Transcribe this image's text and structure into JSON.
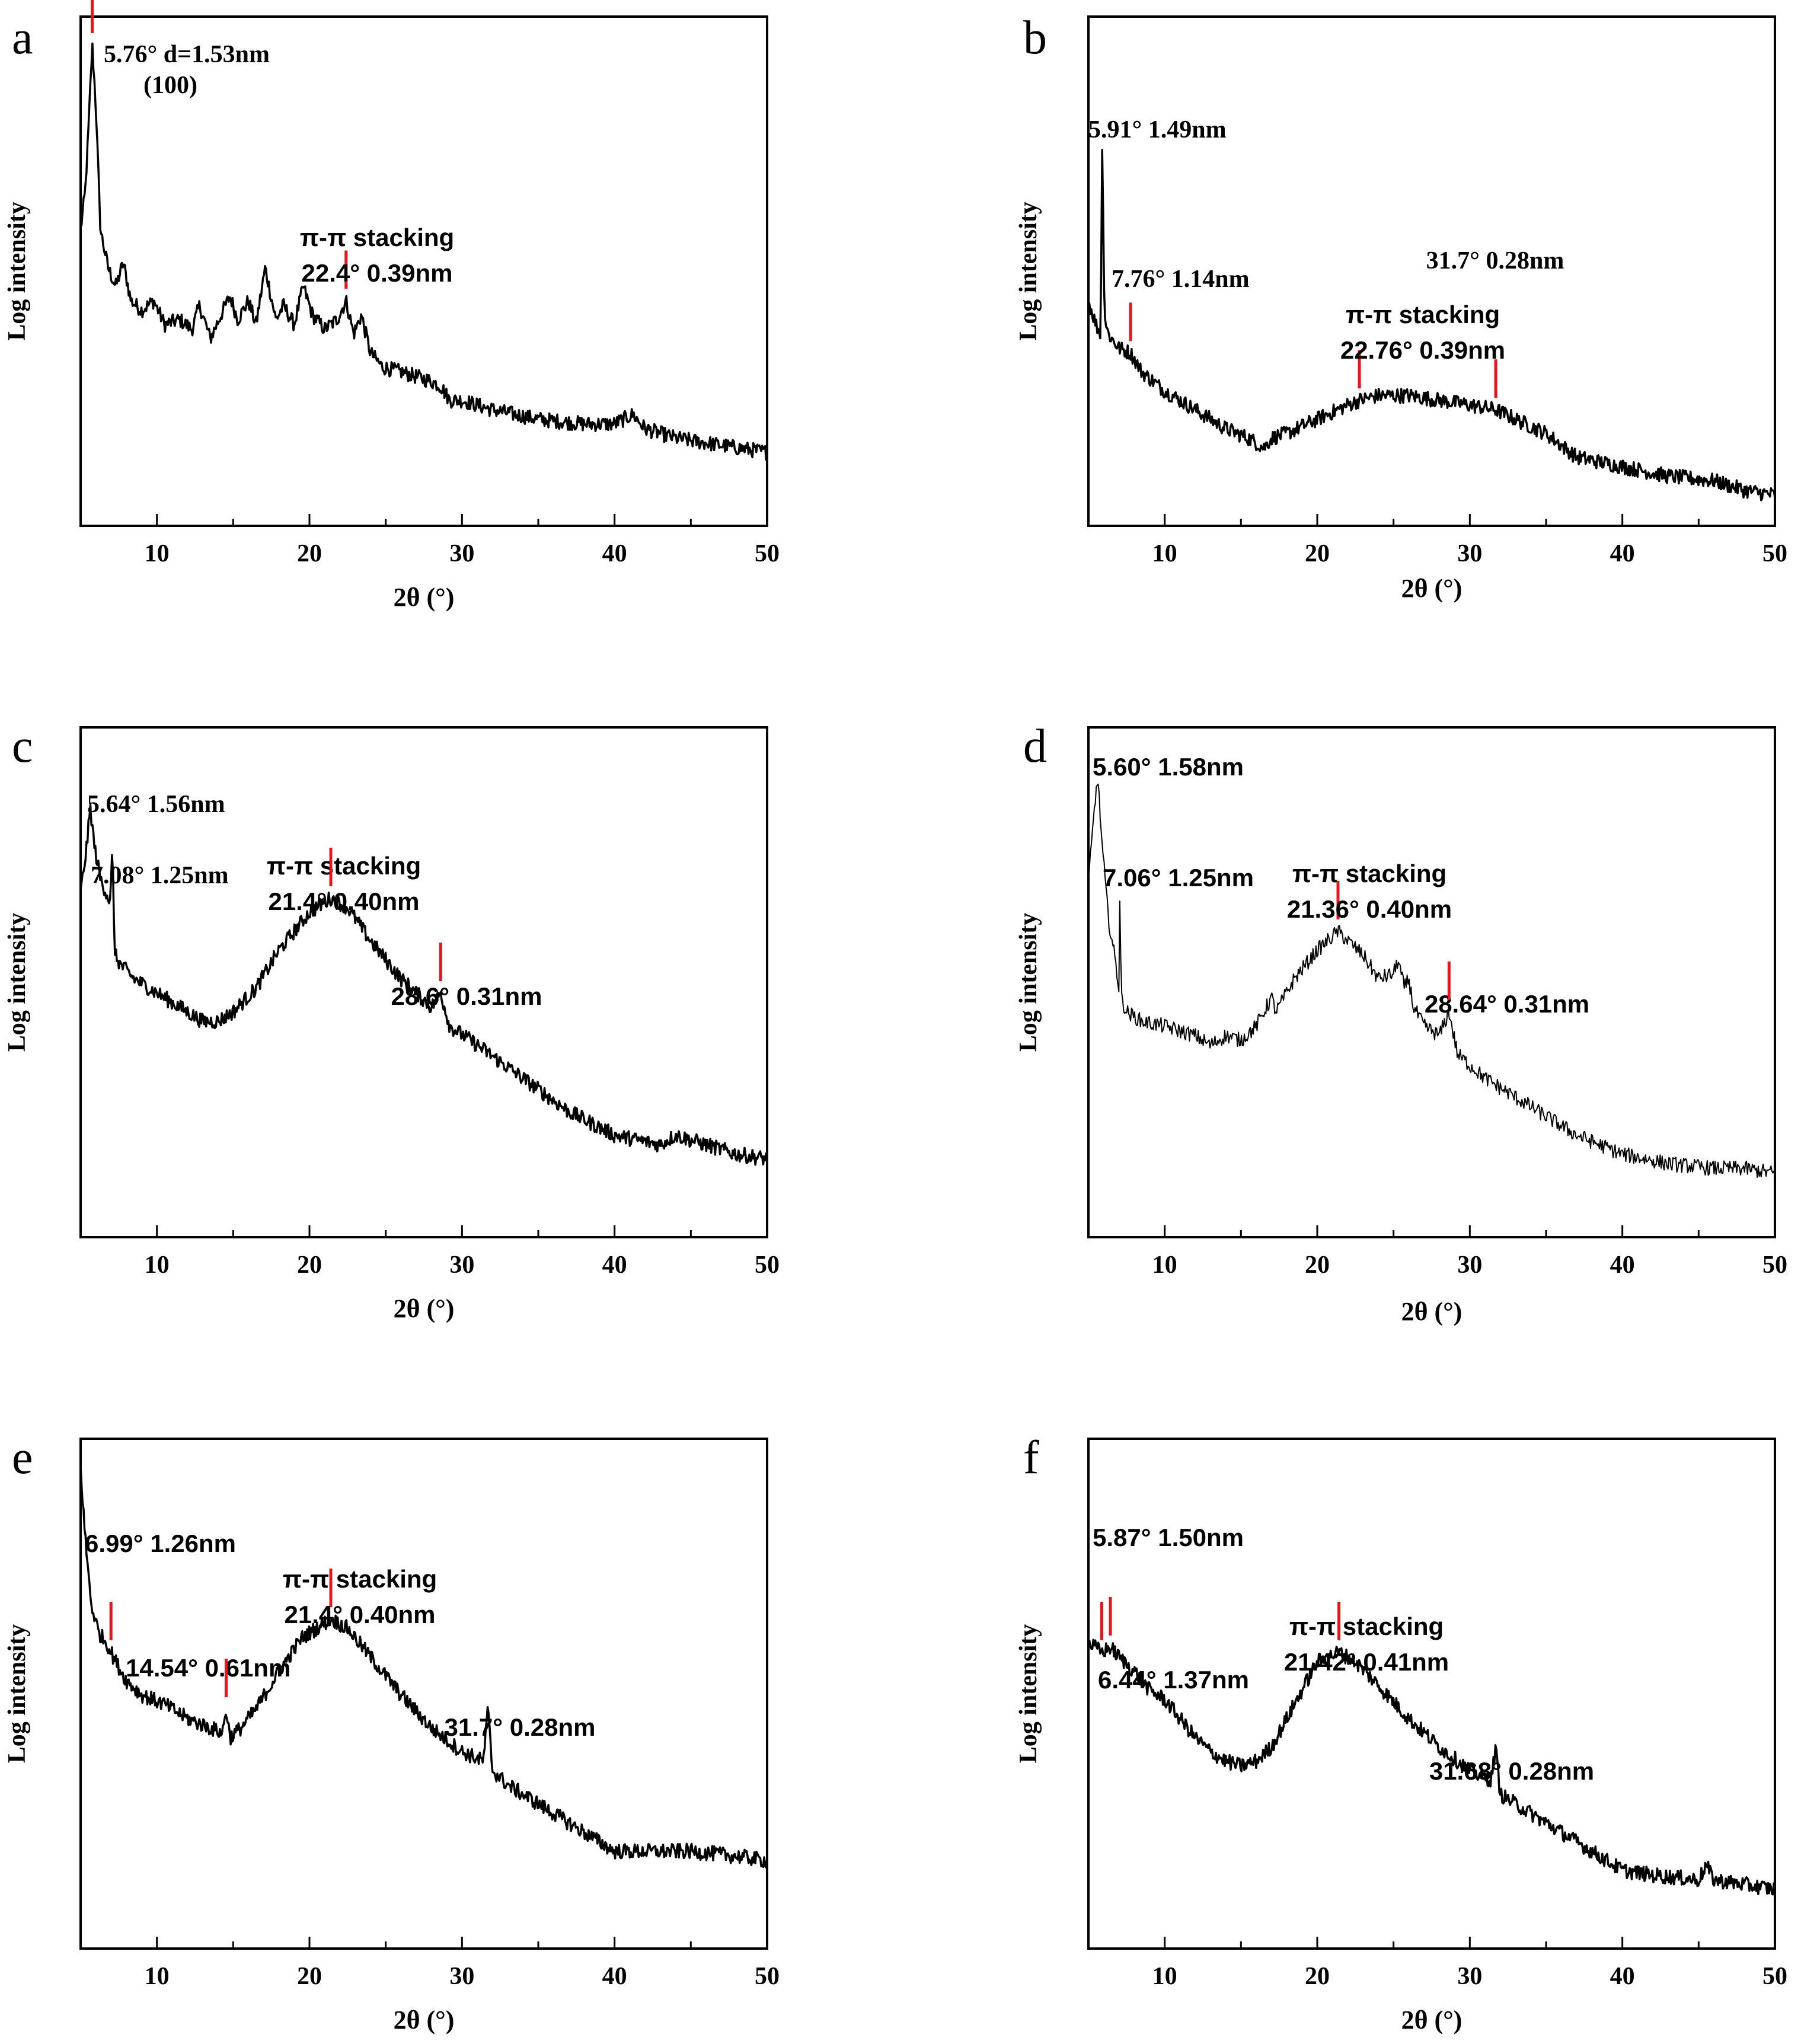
{
  "figure": {
    "background": "#ffffff",
    "line_color": "#000000",
    "marker_color": "#e8141c"
  },
  "chart_data": [
    {
      "panel": "a",
      "type": "line",
      "xlabel": "2θ (°)",
      "ylabel": "Log intensity",
      "xlim": [
        5,
        50
      ],
      "ylim": [
        0,
        100
      ],
      "xticks": [
        "10",
        "20",
        "30",
        "40",
        "50"
      ],
      "series": [
        {
          "name": "a",
          "x": [
            5,
            5.3,
            5.5,
            5.76,
            6.0,
            6.3,
            6.8,
            7.3,
            7.8,
            8.3,
            9.0,
            9.8,
            10.5,
            11.5,
            12.3,
            12.8,
            13.5,
            14.2,
            14.8,
            15.3,
            16.0,
            16.5,
            17.1,
            17.8,
            18.3,
            19.0,
            19.6,
            20.2,
            21.0,
            21.8,
            22.4,
            22.9,
            23.4,
            24.0,
            24.8,
            26.0,
            27.0,
            28.0,
            28.6,
            29.2,
            30.0,
            32.0,
            35.0,
            38.0,
            40.0,
            41.2,
            42.0,
            44.0,
            46.0,
            48.0,
            50.0
          ],
          "y": [
            60,
            68,
            80,
            99,
            86,
            60,
            52,
            48,
            53,
            45,
            43,
            45,
            40,
            41,
            39,
            44,
            37,
            42,
            46,
            41,
            45,
            40,
            52,
            41,
            44,
            40,
            48,
            42,
            39,
            41,
            45,
            38,
            42,
            34,
            31,
            30,
            29,
            28,
            27,
            24,
            24,
            22,
            20,
            19,
            19,
            21,
            18,
            16,
            15,
            14,
            13
          ]
        }
      ],
      "annotations": [
        {
          "text": "5.76° d=1.53nm",
          "x": 5.76,
          "y": 99
        },
        {
          "text": "(100)"
        },
        {
          "text": "π-π stacking",
          "x": 22.4,
          "y": 45
        },
        {
          "text": "22.4°  0.39nm"
        }
      ]
    },
    {
      "panel": "b",
      "type": "line",
      "xlabel": "2θ (°)",
      "ylabel": "Log intensity",
      "xlim": [
        5,
        50
      ],
      "ylim": [
        0,
        100
      ],
      "xticks": [
        "10",
        "20",
        "30",
        "40",
        "50"
      ],
      "series": [
        {
          "name": "b",
          "x": [
            5,
            5.5,
            5.8,
            5.91,
            6.05,
            6.3,
            7.0,
            7.76,
            8.5,
            10.0,
            12.0,
            14.0,
            15.5,
            16.5,
            17.0,
            18.0,
            20.0,
            22.0,
            22.76,
            24.0,
            26.0,
            28.0,
            30.0,
            31.7,
            33.0,
            35.0,
            37.0,
            40.0,
            43.0,
            46.0,
            48.0,
            50.0
          ],
          "y": [
            45,
            40,
            38,
            80,
            42,
            38,
            35,
            34,
            30,
            26,
            22,
            18,
            16,
            14,
            16,
            17,
            20,
            23,
            24,
            25,
            25,
            24,
            23,
            22,
            20,
            17,
            12,
            10,
            8,
            7,
            5,
            4
          ]
        }
      ],
      "annotations": [
        {
          "text": "5.91° 1.49nm",
          "x": 5.91,
          "y": 80
        },
        {
          "text": "7.76° 1.14nm",
          "x": 7.76,
          "y": 34
        },
        {
          "text": "π-π stacking",
          "x": 22.76,
          "y": 24
        },
        {
          "text": "22.76° 0.39nm"
        },
        {
          "text": "31.7° 0.28nm",
          "x": 31.7,
          "y": 22
        }
      ]
    },
    {
      "panel": "c",
      "type": "line",
      "xlabel": "2θ (°)",
      "ylabel": "Log intensity",
      "xlim": [
        5,
        50
      ],
      "ylim": [
        0,
        100
      ],
      "xticks": [
        "10",
        "20",
        "30",
        "40",
        "50"
      ],
      "series": [
        {
          "name": "c",
          "x": [
            5,
            5.4,
            5.64,
            5.9,
            6.3,
            6.7,
            6.95,
            7.08,
            7.25,
            7.6,
            8.5,
            10.0,
            11.5,
            13.0,
            14.0,
            15.0,
            16.5,
            18.0,
            20.0,
            21.4,
            22.5,
            24.0,
            26.0,
            28.0,
            28.6,
            29.2,
            31.0,
            34.0,
            37.0,
            40.0,
            43.0,
            44.0,
            46.0,
            48.0,
            50.0
          ],
          "y": [
            70,
            80,
            88,
            80,
            73,
            70,
            68,
            79,
            57,
            55,
            52,
            49,
            46,
            43,
            43,
            45,
            50,
            58,
            66,
            69,
            67,
            60,
            52,
            46,
            49,
            42,
            38,
            31,
            24,
            19,
            17,
            19,
            17,
            15,
            14
          ]
        }
      ],
      "annotations": [
        {
          "text": "5.64° 1.56nm",
          "x": 5.64,
          "y": 88
        },
        {
          "text": "7.08° 1.25nm",
          "x": 7.08,
          "y": 79
        },
        {
          "text": "π-π stacking",
          "x": 21.4,
          "y": 69
        },
        {
          "text": "21.4° 0.40nm"
        },
        {
          "text": "28.6° 0.31nm",
          "x": 28.6,
          "y": 49
        }
      ]
    },
    {
      "panel": "d",
      "type": "line",
      "xlabel": "2θ (°)",
      "ylabel": "Log intensity",
      "xlim": [
        5,
        50
      ],
      "ylim": [
        0,
        100
      ],
      "xticks": [
        "10",
        "20",
        "30",
        "40",
        "50"
      ],
      "series": [
        {
          "name": "d",
          "x": [
            5,
            5.3,
            5.6,
            5.9,
            6.3,
            6.8,
            7.0,
            7.06,
            7.15,
            7.5,
            8.5,
            10.0,
            12.0,
            13.0,
            14.0,
            15.0,
            16.0,
            17.0,
            17.3,
            18.5,
            20.0,
            21.36,
            22.0,
            23.0,
            24.0,
            25.0,
            25.3,
            25.7,
            26.0,
            26.3,
            27.0,
            28.0,
            28.64,
            29.2,
            31.0,
            34.0,
            37.0,
            40.0,
            43.0,
            46.0,
            48.0,
            50.0
          ],
          "y": [
            72,
            84,
            95,
            80,
            65,
            55,
            50,
            70,
            48,
            45,
            43,
            42,
            40,
            38,
            40,
            39,
            42,
            48,
            45,
            52,
            58,
            62,
            60,
            57,
            52,
            53,
            56,
            50,
            52,
            46,
            42,
            40,
            45,
            36,
            31,
            25,
            19,
            15,
            13,
            12,
            12,
            11
          ]
        }
      ],
      "annotations": [
        {
          "text": "5.60° 1.58nm",
          "x": 5.6,
          "y": 95
        },
        {
          "text": "7.06° 1.25nm",
          "x": 7.06,
          "y": 70
        },
        {
          "text": "π-π stacking",
          "x": 21.36,
          "y": 62
        },
        {
          "text": "21.36° 0.40nm"
        },
        {
          "text": "28.64° 0.31nm",
          "x": 28.64,
          "y": 45
        }
      ]
    },
    {
      "panel": "e",
      "type": "line",
      "xlabel": "2θ (°)",
      "ylabel": "Log intensity",
      "xlim": [
        5,
        50
      ],
      "ylim": [
        0,
        100
      ],
      "xticks": [
        "10",
        "20",
        "30",
        "40",
        "50"
      ],
      "series": [
        {
          "name": "e",
          "x": [
            5,
            5.3,
            5.7,
            6.2,
            6.7,
            6.99,
            7.3,
            8.0,
            9.0,
            10.5,
            12.0,
            13.5,
            14.3,
            14.54,
            14.8,
            15.5,
            16.5,
            18.0,
            19.5,
            21.4,
            22.5,
            24.0,
            26.0,
            28.0,
            30.0,
            31.4,
            31.7,
            32.0,
            33.0,
            35.0,
            38.0,
            40.0,
            42.0,
            45.0,
            48.0,
            50.0
          ],
          "y": [
            99,
            84,
            70,
            64,
            62,
            60,
            58,
            54,
            51,
            49,
            46,
            44,
            43,
            48,
            42,
            44,
            48,
            56,
            63,
            67,
            65,
            59,
            51,
            44,
            39,
            37,
            48,
            35,
            32,
            28,
            22,
            18,
            18,
            18,
            17,
            16
          ]
        }
      ],
      "annotations": [
        {
          "text": "6.99° 1.26nm",
          "x": 6.99,
          "y": 60
        },
        {
          "text": "14.54° 0.61nm",
          "x": 14.54,
          "y": 48
        },
        {
          "text": "π-π stacking",
          "x": 21.4,
          "y": 67
        },
        {
          "text": "21.4° 0.40nm"
        },
        {
          "text": "31.7° 0.28nm",
          "x": 31.7,
          "y": 48
        }
      ]
    },
    {
      "panel": "f",
      "type": "line",
      "xlabel": "2θ (°)",
      "ylabel": "Log intensity",
      "xlim": [
        5,
        50
      ],
      "ylim": [
        0,
        100
      ],
      "xticks": [
        "10",
        "20",
        "30",
        "40",
        "50"
      ],
      "series": [
        {
          "name": "f",
          "x": [
            5,
            5.87,
            6.44,
            7.0,
            8.0,
            9.0,
            10.0,
            11.0,
            12.0,
            13.0,
            14.0,
            15.0,
            16.0,
            17.0,
            18.0,
            19.0,
            20.0,
            21.42,
            22.5,
            24.0,
            26.0,
            28.0,
            30.0,
            31.4,
            31.68,
            32.0,
            33.0,
            35.0,
            38.0,
            40.0,
            42.0,
            45.0,
            45.5,
            46.0,
            48.0,
            50.0
          ],
          "y": [
            62,
            60,
            61,
            59,
            56,
            52,
            50,
            46,
            42,
            39,
            37,
            36,
            37,
            40,
            46,
            52,
            58,
            60,
            58,
            53,
            46,
            40,
            35,
            33,
            40,
            30,
            28,
            24,
            18,
            14,
            13,
            12,
            15,
            12,
            11,
            10
          ]
        }
      ],
      "annotations": [
        {
          "text": "5.87° 1.50nm",
          "x": 5.87,
          "y": 60
        },
        {
          "text": "6.44° 1.37nm",
          "x": 6.44,
          "y": 61
        },
        {
          "text": "π-π stacking",
          "x": 21.42,
          "y": 60
        },
        {
          "text": "21.42° 0.41nm"
        },
        {
          "text": "31.68° 0.28nm",
          "x": 31.68,
          "y": 40
        }
      ]
    }
  ]
}
